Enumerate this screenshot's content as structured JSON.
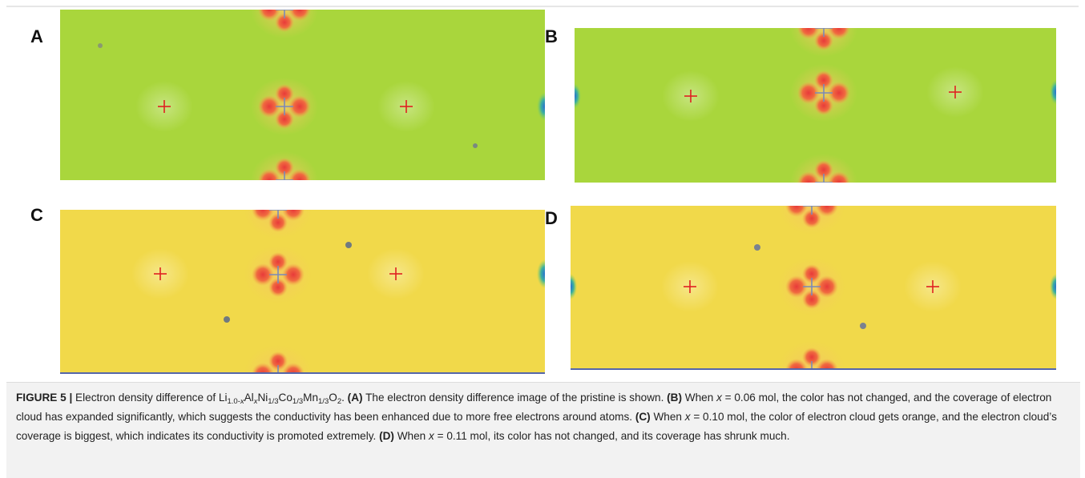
{
  "panels": [
    {
      "label": "A"
    },
    {
      "label": "B"
    },
    {
      "label": "C"
    },
    {
      "label": "D"
    }
  ],
  "caption": {
    "runs": [
      {
        "text": "FIGURE 5 |",
        "style": "bold"
      },
      {
        "text": " Electron density difference of Li"
      },
      {
        "text": "1.0-",
        "style": "sub"
      },
      {
        "text": "x",
        "style": "sub italic"
      },
      {
        "text": "Al"
      },
      {
        "text": "x",
        "style": "sub italic"
      },
      {
        "text": "Ni"
      },
      {
        "text": "1/3",
        "style": "sub"
      },
      {
        "text": "Co"
      },
      {
        "text": "1/3",
        "style": "sub"
      },
      {
        "text": "Mn"
      },
      {
        "text": "1/3",
        "style": "sub"
      },
      {
        "text": "O"
      },
      {
        "text": "2",
        "style": "sub"
      },
      {
        "text": ". "
      },
      {
        "text": "(A)",
        "style": "bold"
      },
      {
        "text": " The electron density difference image of the pristine is shown. "
      },
      {
        "text": "(B)",
        "style": "bold"
      },
      {
        "text": " When "
      },
      {
        "text": "x",
        "style": "italic"
      },
      {
        "text": " = 0.06 mol, the color has not changed, and the coverage of electron cloud has expanded significantly, which suggests the conductivity has been enhanced due to more free electrons around atoms. "
      },
      {
        "text": "(C)",
        "style": "bold"
      },
      {
        "text": " When "
      },
      {
        "text": "x",
        "style": "italic"
      },
      {
        "text": " = 0.10 mol, the color of electron cloud gets orange, and the electron cloud’s coverage is biggest, which indicates its conductivity is promoted extremely. "
      },
      {
        "text": "(D)",
        "style": "bold"
      },
      {
        "text": " When "
      },
      {
        "text": "x",
        "style": "italic"
      },
      {
        "text": " = 0.11 mol, its color has not changed, and its coverage has shrunk much."
      }
    ]
  }
}
